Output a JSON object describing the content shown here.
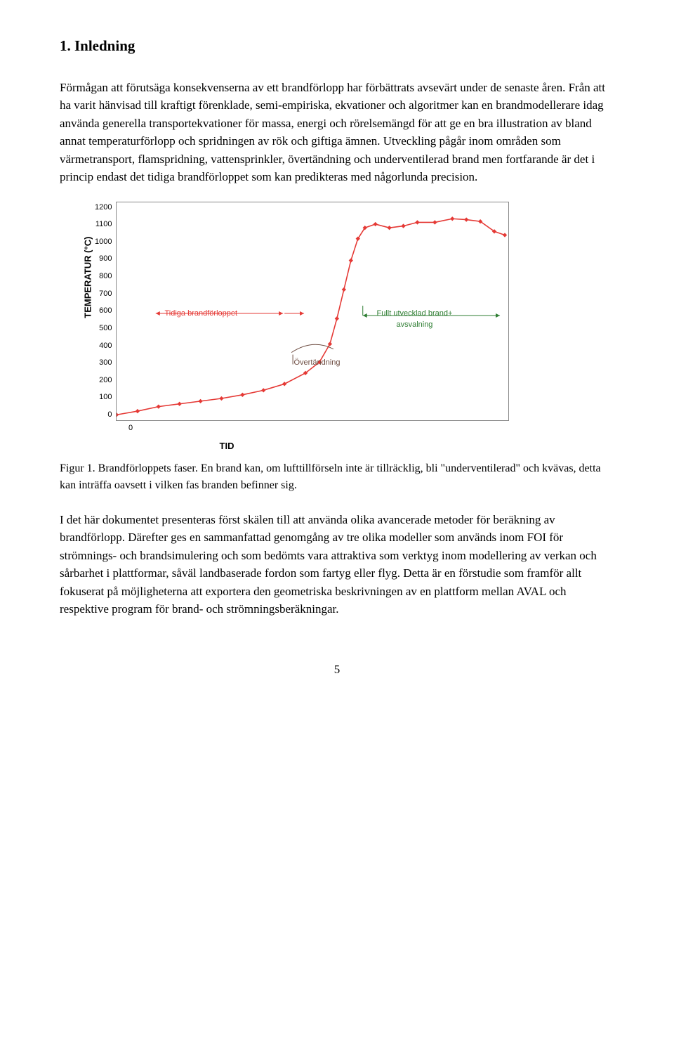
{
  "heading": "1. Inledning",
  "para1": "Förmågan att förutsäga konsekvenserna av ett brandförlopp har förbättrats avsevärt under de senaste åren. Från att ha varit hänvisad till kraftigt förenklade, semi-empiriska, ekvationer och algoritmer kan en brandmodellerare idag använda generella transportekvationer för massa, energi och rörelsemängd för att ge en bra illustration av bland annat temperaturförlopp och spridningen av rök och giftiga ämnen. Utveckling pågår inom områden som värmetransport, flamspridning, vattensprinkler, övertändning och underventilerad brand men fortfarande är det i princip endast det tidiga brandförloppet som kan predikteras med någorlunda precision.",
  "caption": "Figur 1. Brandförloppets faser. En brand kan, om lufttillförseln inte är tillräcklig, bli \"underventilerad\" och kvävas, detta kan inträffa oavsett i vilken fas branden befinner sig.",
  "para2": "I det här dokumentet presenteras först skälen till att använda olika avancerade metoder för beräkning av brandförlopp. Därefter ges en sammanfattad genomgång av tre olika modeller som används inom FOI för strömnings- och brandsimulering och som bedömts vara attraktiva som verktyg inom modellering av verkan och sårbarhet i plattformar, såväl landbaserade fordon som fartyg eller flyg. Detta är en förstudie som framför allt fokuserat på möjligheterna att exportera den geometriska beskrivningen av en plattform mellan AVAL och respektive program för brand- och strömningsberäkningar.",
  "pagenum": "5",
  "chart": {
    "type": "line",
    "ylabel": "TEMPERATUR (°C)",
    "xlabel": "TID",
    "ylim": [
      0,
      1200
    ],
    "ytick_step": 100,
    "yticks": [
      "1200",
      "1100",
      "1000",
      "900",
      "800",
      "700",
      "600",
      "500",
      "400",
      "300",
      "200",
      "100",
      "0"
    ],
    "xtick": "0",
    "line_color": "#e53935",
    "marker_color": "#e53935",
    "border_color": "#888888",
    "background_color": "#ffffff",
    "annotations": {
      "early": {
        "text": "Tidiga brandförloppet",
        "color": "#e53935"
      },
      "flashover": {
        "text": "Övertändning",
        "color": "#6d4c41"
      },
      "full": {
        "text": "Fullt utvecklad brand+\navsvalning",
        "color": "#2e7d32"
      }
    },
    "points": [
      [
        0,
        30
      ],
      [
        30,
        50
      ],
      [
        60,
        75
      ],
      [
        90,
        90
      ],
      [
        120,
        105
      ],
      [
        150,
        120
      ],
      [
        180,
        140
      ],
      [
        210,
        165
      ],
      [
        240,
        200
      ],
      [
        270,
        260
      ],
      [
        290,
        320
      ],
      [
        305,
        420
      ],
      [
        315,
        560
      ],
      [
        325,
        720
      ],
      [
        335,
        880
      ],
      [
        345,
        1000
      ],
      [
        355,
        1060
      ],
      [
        370,
        1080
      ],
      [
        390,
        1060
      ],
      [
        410,
        1070
      ],
      [
        430,
        1090
      ],
      [
        455,
        1090
      ],
      [
        480,
        1110
      ],
      [
        500,
        1105
      ],
      [
        520,
        1095
      ],
      [
        540,
        1040
      ],
      [
        555,
        1020
      ]
    ],
    "x_domain": [
      0,
      560
    ]
  }
}
